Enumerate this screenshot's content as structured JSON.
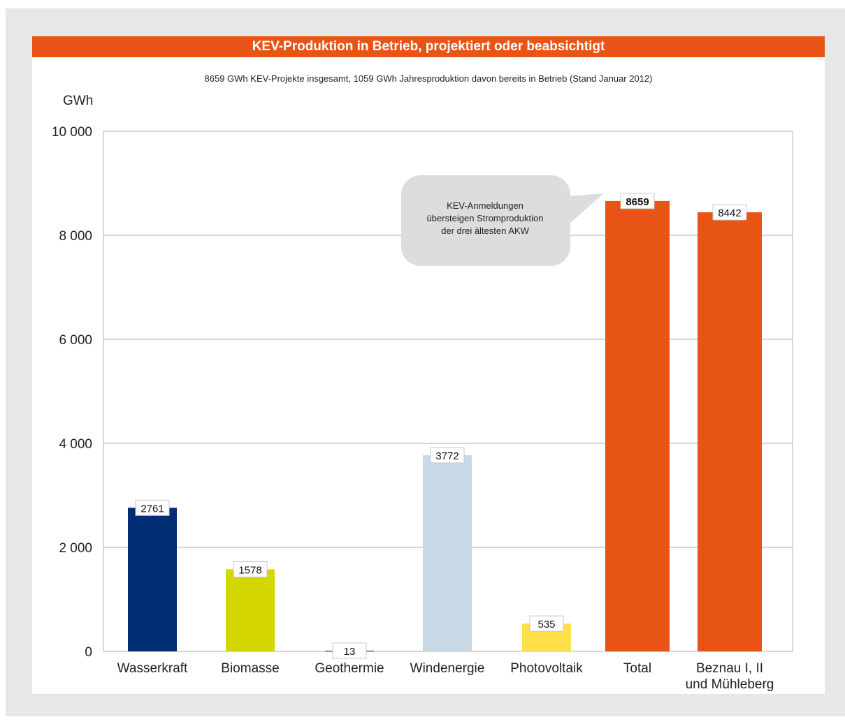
{
  "title": "KEV-Produktion in Betrieb, projektiert oder beabsichtigt",
  "subtitle": "8659 GWh KEV-Projekte insgesamt, 1059 GWh Jahresproduktion davon bereits in Betrieb (Stand Januar 2012)",
  "callout": [
    "KEV-Anmeldungen",
    "übersteigen Stromproduktion",
    "der drei ältesten AKW"
  ],
  "colors": {
    "brand": "#e85416",
    "frame": "#e6e7e8",
    "grid": "#b0b0b0",
    "callout_bg": "#dcddde"
  },
  "chart_data": {
    "type": "bar",
    "ylabel": "GWh",
    "ylim": [
      0,
      10000
    ],
    "ytick_values": [
      0,
      2000,
      4000,
      6000,
      8000,
      10000
    ],
    "ytick_labels": [
      "0",
      "2 000",
      "4 000",
      "6 000",
      "8 000",
      "10 000"
    ],
    "grid": true,
    "categories": [
      [
        "Wasserkraft"
      ],
      [
        "Biomasse"
      ],
      [
        "Geothermie"
      ],
      [
        "Windenergie"
      ],
      [
        "Photovoltaik"
      ],
      [
        "Total"
      ],
      [
        "Beznau I, II",
        "und Mühleberg"
      ]
    ],
    "values": [
      2761,
      1578,
      13,
      3772,
      535,
      8659,
      8442
    ],
    "value_labels": [
      "2761",
      "1578",
      "13",
      "3772",
      "535",
      "8659",
      "8442"
    ],
    "bold_labels": [
      false,
      false,
      false,
      false,
      false,
      true,
      false
    ],
    "bar_colors": [
      "#002d74",
      "#d4d600",
      "#002d74",
      "#c9d9e6",
      "#ffe04a",
      "#e85416",
      "#e85416"
    ]
  }
}
